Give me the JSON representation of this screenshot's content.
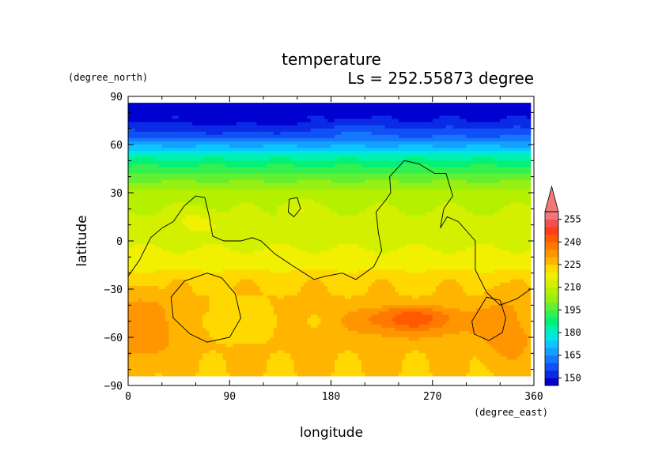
{
  "chart_data": {
    "type": "heatmap",
    "title": "temperature",
    "subtitle": "Ls = 252.55873 degree",
    "xlabel": "longitude",
    "ylabel": "latitude",
    "x_unit": "(degree_east)",
    "y_unit": "(degree_north)",
    "xlim": [
      0,
      360
    ],
    "ylim": [
      -90,
      90
    ],
    "data_lat_range": [
      -84,
      86
    ],
    "data_lon_range": [
      0,
      355
    ],
    "xticks": [
      0,
      90,
      180,
      270,
      360
    ],
    "yticks": [
      90,
      60,
      30,
      0,
      -30,
      -60,
      -90
    ],
    "colorbar": {
      "levels": [
        145,
        150,
        155,
        160,
        165,
        170,
        175,
        180,
        185,
        190,
        195,
        200,
        205,
        210,
        215,
        220,
        225,
        230,
        235,
        240,
        245,
        250,
        255,
        260
      ],
      "colors": [
        "#0000d0",
        "#0a2ae6",
        "#1050f5",
        "#1478ff",
        "#14a0ff",
        "#0ac8ff",
        "#00e6e6",
        "#00f0b0",
        "#00f078",
        "#32f050",
        "#64f032",
        "#96f014",
        "#b4f000",
        "#d2f000",
        "#f0f000",
        "#ffd800",
        "#ffb400",
        "#ff9600",
        "#ff7800",
        "#ff5a00",
        "#ff3c1e",
        "#f05050",
        "#f07878"
      ],
      "labels": [
        255,
        240,
        225,
        210,
        195,
        180,
        165,
        150
      ],
      "extend": "max"
    },
    "lat_profile": [
      {
        "lat": 86,
        "t": 147
      },
      {
        "lat": 75,
        "t": 150
      },
      {
        "lat": 65,
        "t": 160
      },
      {
        "lat": 60,
        "t": 168
      },
      {
        "lat": 55,
        "t": 178
      },
      {
        "lat": 50,
        "t": 186
      },
      {
        "lat": 45,
        "t": 192
      },
      {
        "lat": 40,
        "t": 197
      },
      {
        "lat": 35,
        "t": 202
      },
      {
        "lat": 30,
        "t": 207
      },
      {
        "lat": 20,
        "t": 210
      },
      {
        "lat": 5,
        "t": 212
      },
      {
        "lat": -15,
        "t": 218
      },
      {
        "lat": -25,
        "t": 224
      },
      {
        "lat": -40,
        "t": 226
      },
      {
        "lat": -65,
        "t": 226
      },
      {
        "lat": -84,
        "t": 225
      }
    ],
    "anomalies": [
      {
        "lon": 252,
        "lat": -50,
        "rlon": 75,
        "rlat": 14,
        "dt": 10
      },
      {
        "lon": 250,
        "lat": -48,
        "rlon": 45,
        "rlat": 8,
        "dt": 6
      },
      {
        "lon": 12,
        "lat": -55,
        "rlon": 40,
        "rlat": 30,
        "dt": 7
      },
      {
        "lon": 335,
        "lat": -55,
        "rlon": 35,
        "rlat": 30,
        "dt": 6
      },
      {
        "lon": 100,
        "lat": -50,
        "rlon": 45,
        "rlat": 18,
        "dt": -4
      },
      {
        "lon": 100,
        "lat": 70,
        "rlon": 100,
        "rlat": 10,
        "dt": -3
      },
      {
        "lon": 200,
        "lat": 70,
        "rlon": 25,
        "rlat": 8,
        "dt": 4
      },
      {
        "lon": 60,
        "lat": 12,
        "rlon": 30,
        "rlat": 10,
        "dt": 5
      },
      {
        "lon": 150,
        "lat": 20,
        "rlon": 20,
        "rlat": 8,
        "dt": 5
      }
    ],
    "contour_lines": [
      [
        [
          0,
          -22
        ],
        [
          10,
          -12
        ],
        [
          20,
          2
        ],
        [
          30,
          8
        ],
        [
          40,
          12
        ],
        [
          50,
          22
        ],
        [
          60,
          28
        ],
        [
          68,
          27
        ],
        [
          72,
          15
        ],
        [
          75,
          3
        ],
        [
          85,
          0
        ],
        [
          100,
          0
        ],
        [
          110,
          2
        ],
        [
          118,
          0
        ],
        [
          130,
          -8
        ],
        [
          145,
          -15
        ],
        [
          165,
          -24
        ],
        [
          175,
          -22
        ],
        [
          190,
          -20
        ],
        [
          202,
          -24
        ],
        [
          218,
          -16
        ],
        [
          225,
          -6
        ],
        [
          222,
          5
        ],
        [
          220,
          18
        ],
        [
          228,
          25
        ],
        [
          233,
          30
        ],
        [
          232,
          40
        ],
        [
          245,
          50
        ],
        [
          258,
          48
        ],
        [
          272,
          42
        ],
        [
          282,
          42
        ],
        [
          288,
          28
        ],
        [
          280,
          20
        ],
        [
          277,
          8
        ],
        [
          283,
          15
        ],
        [
          293,
          12
        ],
        [
          308,
          0
        ],
        [
          308,
          -18
        ],
        [
          318,
          -32
        ],
        [
          330,
          -40
        ],
        [
          345,
          -36
        ],
        [
          357,
          -30
        ]
      ],
      [
        [
          70,
          -20
        ],
        [
          83,
          -23
        ],
        [
          95,
          -33
        ],
        [
          100,
          -48
        ],
        [
          90,
          -60
        ],
        [
          70,
          -63
        ],
        [
          55,
          -58
        ],
        [
          40,
          -48
        ],
        [
          38,
          -35
        ],
        [
          50,
          -25
        ],
        [
          70,
          -20
        ]
      ],
      [
        [
          330,
          -37
        ],
        [
          318,
          -35
        ],
        [
          312,
          -42
        ],
        [
          305,
          -50
        ],
        [
          307,
          -58
        ],
        [
          320,
          -62
        ],
        [
          332,
          -57
        ],
        [
          335,
          -48
        ],
        [
          330,
          -37
        ]
      ],
      [
        [
          143,
          26
        ],
        [
          150,
          27
        ],
        [
          153,
          20
        ],
        [
          147,
          15
        ],
        [
          142,
          18
        ],
        [
          143,
          26
        ]
      ]
    ]
  }
}
